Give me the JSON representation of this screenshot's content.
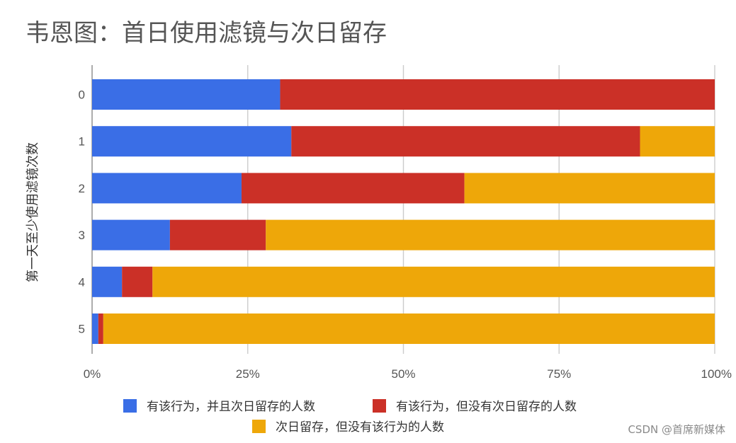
{
  "chart_data": {
    "type": "bar",
    "orientation": "horizontal",
    "stacked": "percent",
    "title": "韦恩图：首日使用滤镜与次日留存",
    "xlabel": "",
    "ylabel": "第一天至少使用滤镜次数",
    "categories": [
      "0",
      "1",
      "2",
      "3",
      "4",
      "5"
    ],
    "xlim": [
      0,
      100
    ],
    "x_ticks": [
      "0%",
      "25%",
      "50%",
      "75%",
      "100%"
    ],
    "x_tick_values": [
      0,
      25,
      50,
      75,
      100
    ],
    "grid": true,
    "legend_position": "bottom",
    "series": [
      {
        "name": "有该行为，并且次日留存的人数",
        "color": "#3a6ee6",
        "values": [
          30.2,
          32.0,
          24.0,
          12.5,
          4.8,
          1.0
        ]
      },
      {
        "name": "有该行为，但没有次日留存的人数",
        "color": "#cb3027",
        "values": [
          69.8,
          56.0,
          35.8,
          15.4,
          4.9,
          0.8
        ]
      },
      {
        "name": "次日留存，但没有该行为的人数",
        "color": "#eea709",
        "values": [
          0,
          12.0,
          40.2,
          72.1,
          90.3,
          98.2
        ]
      }
    ]
  },
  "watermark": "CSDN @首席新媒体"
}
